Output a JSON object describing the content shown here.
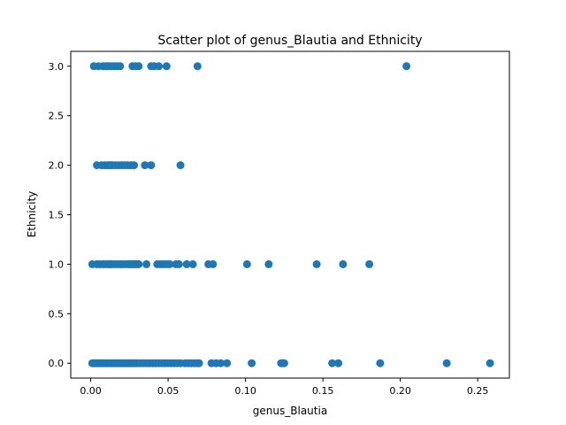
{
  "chart_data": {
    "type": "scatter",
    "title": "Scatter plot of genus_Blautia and Ethnicity",
    "xlabel": "genus_Blautia",
    "ylabel": "Ethnicity",
    "xlim": [
      -0.0129,
      0.2705
    ],
    "ylim": [
      -0.15,
      3.15
    ],
    "xticks": [
      0.0,
      0.05,
      0.1,
      0.15,
      0.2,
      0.25
    ],
    "xtick_labels": [
      "0.00",
      "0.05",
      "0.10",
      "0.15",
      "0.20",
      "0.25"
    ],
    "yticks": [
      0.0,
      0.5,
      1.0,
      1.5,
      2.0,
      2.5,
      3.0
    ],
    "ytick_labels": [
      "0.0",
      "0.5",
      "1.0",
      "1.5",
      "2.0",
      "2.5",
      "3.0"
    ],
    "grid": false,
    "marker_color": "#1f77b4",
    "series": [
      {
        "points": [
          [
            0.001,
            0
          ],
          [
            0.002,
            0
          ],
          [
            0.003,
            0
          ],
          [
            0.004,
            0
          ],
          [
            0.005,
            0
          ],
          [
            0.006,
            0
          ],
          [
            0.007,
            0
          ],
          [
            0.008,
            0
          ],
          [
            0.009,
            0
          ],
          [
            0.01,
            0
          ],
          [
            0.011,
            0
          ],
          [
            0.012,
            0
          ],
          [
            0.013,
            0
          ],
          [
            0.014,
            0
          ],
          [
            0.015,
            0
          ],
          [
            0.016,
            0
          ],
          [
            0.017,
            0
          ],
          [
            0.018,
            0
          ],
          [
            0.019,
            0
          ],
          [
            0.02,
            0
          ],
          [
            0.021,
            0
          ],
          [
            0.022,
            0
          ],
          [
            0.023,
            0
          ],
          [
            0.024,
            0
          ],
          [
            0.025,
            0
          ],
          [
            0.026,
            0
          ],
          [
            0.027,
            0
          ],
          [
            0.028,
            0
          ],
          [
            0.029,
            0
          ],
          [
            0.03,
            0
          ],
          [
            0.032,
            0
          ],
          [
            0.034,
            0
          ],
          [
            0.036,
            0
          ],
          [
            0.038,
            0
          ],
          [
            0.04,
            0
          ],
          [
            0.042,
            0
          ],
          [
            0.044,
            0
          ],
          [
            0.046,
            0
          ],
          [
            0.048,
            0
          ],
          [
            0.05,
            0
          ],
          [
            0.052,
            0
          ],
          [
            0.054,
            0
          ],
          [
            0.056,
            0
          ],
          [
            0.058,
            0
          ],
          [
            0.061,
            0
          ],
          [
            0.063,
            0
          ],
          [
            0.065,
            0
          ],
          [
            0.067,
            0
          ],
          [
            0.069,
            0
          ],
          [
            0.07,
            0
          ],
          [
            0.078,
            0
          ],
          [
            0.081,
            0
          ],
          [
            0.084,
            0
          ],
          [
            0.088,
            0
          ],
          [
            0.104,
            0
          ],
          [
            0.123,
            0
          ],
          [
            0.124,
            0
          ],
          [
            0.125,
            0
          ],
          [
            0.156,
            0
          ],
          [
            0.16,
            0
          ],
          [
            0.187,
            0
          ],
          [
            0.23,
            0
          ],
          [
            0.258,
            0
          ],
          [
            0.001,
            1
          ],
          [
            0.004,
            1
          ],
          [
            0.006,
            1
          ],
          [
            0.008,
            1
          ],
          [
            0.009,
            1
          ],
          [
            0.011,
            1
          ],
          [
            0.012,
            1
          ],
          [
            0.013,
            1
          ],
          [
            0.015,
            1
          ],
          [
            0.017,
            1
          ],
          [
            0.019,
            1
          ],
          [
            0.02,
            1
          ],
          [
            0.022,
            1
          ],
          [
            0.024,
            1
          ],
          [
            0.025,
            1
          ],
          [
            0.026,
            1
          ],
          [
            0.027,
            1
          ],
          [
            0.028,
            1
          ],
          [
            0.029,
            1
          ],
          [
            0.03,
            1
          ],
          [
            0.031,
            1
          ],
          [
            0.036,
            1
          ],
          [
            0.043,
            1
          ],
          [
            0.045,
            1
          ],
          [
            0.047,
            1
          ],
          [
            0.049,
            1
          ],
          [
            0.051,
            1
          ],
          [
            0.055,
            1
          ],
          [
            0.057,
            1
          ],
          [
            0.062,
            1
          ],
          [
            0.066,
            1
          ],
          [
            0.076,
            1
          ],
          [
            0.079,
            1
          ],
          [
            0.101,
            1
          ],
          [
            0.115,
            1
          ],
          [
            0.146,
            1
          ],
          [
            0.163,
            1
          ],
          [
            0.18,
            1
          ],
          [
            0.004,
            2
          ],
          [
            0.007,
            2
          ],
          [
            0.009,
            2
          ],
          [
            0.011,
            2
          ],
          [
            0.012,
            2
          ],
          [
            0.013,
            2
          ],
          [
            0.014,
            2
          ],
          [
            0.016,
            2
          ],
          [
            0.018,
            2
          ],
          [
            0.02,
            2
          ],
          [
            0.022,
            2
          ],
          [
            0.024,
            2
          ],
          [
            0.026,
            2
          ],
          [
            0.028,
            2
          ],
          [
            0.035,
            2
          ],
          [
            0.039,
            2
          ],
          [
            0.058,
            2
          ],
          [
            0.002,
            3
          ],
          [
            0.005,
            3
          ],
          [
            0.008,
            3
          ],
          [
            0.01,
            3
          ],
          [
            0.011,
            3
          ],
          [
            0.013,
            3
          ],
          [
            0.015,
            3
          ],
          [
            0.017,
            3
          ],
          [
            0.019,
            3
          ],
          [
            0.027,
            3
          ],
          [
            0.029,
            3
          ],
          [
            0.031,
            3
          ],
          [
            0.039,
            3
          ],
          [
            0.041,
            3
          ],
          [
            0.044,
            3
          ],
          [
            0.049,
            3
          ],
          [
            0.069,
            3
          ],
          [
            0.204,
            3
          ]
        ]
      }
    ]
  }
}
